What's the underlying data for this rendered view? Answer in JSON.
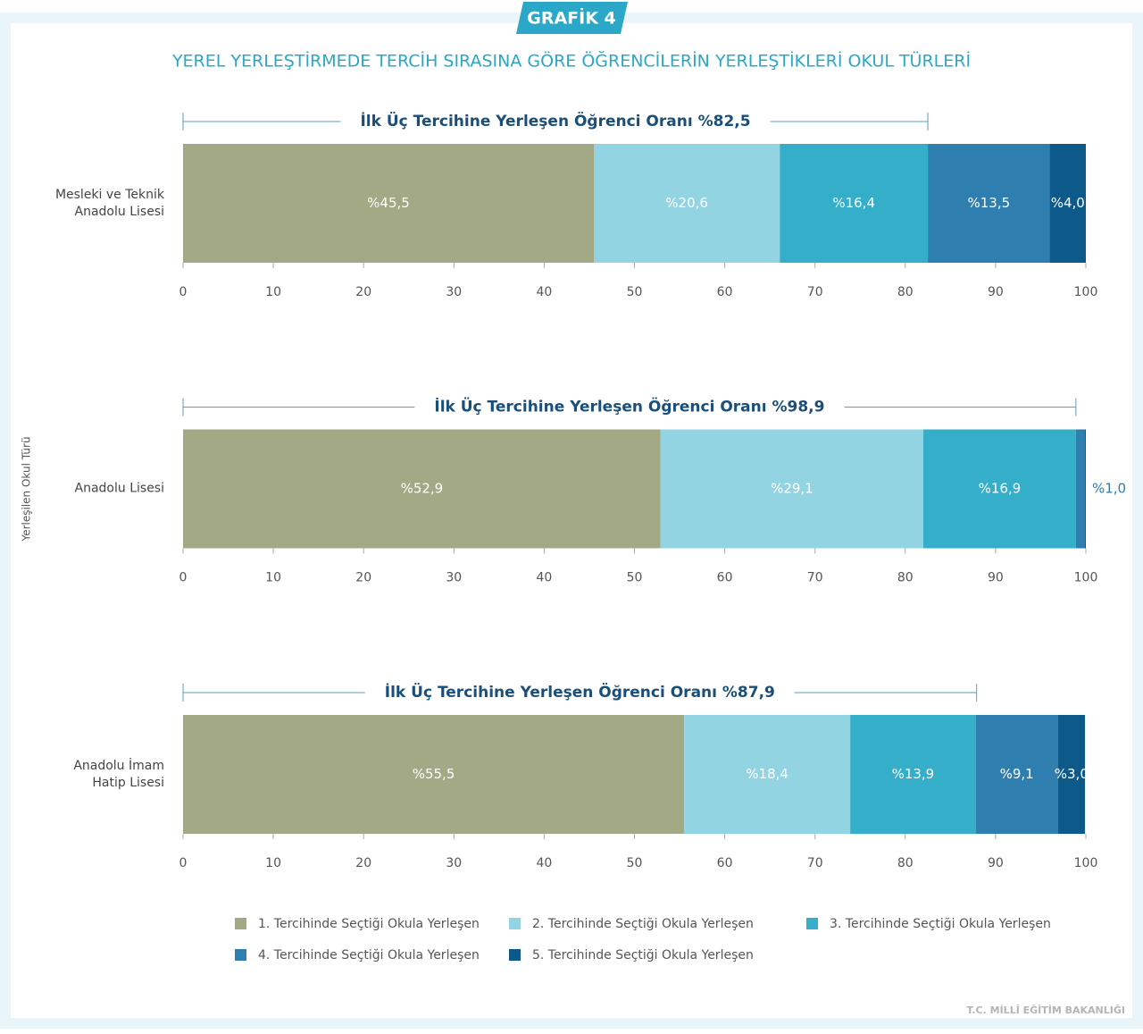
{
  "badge": "GRAFİK 4",
  "footer": "T.C. MİLLİ EĞİTİM BAKANLIĞI",
  "chart_data": {
    "type": "stacked-bar-horizontal",
    "title": "YEREL YERLEŞTİRMEDE TERCİH SIRASINA GÖRE ÖĞRENCİLERİN YERLEŞTİKLERİ OKUL TÜRLERİ",
    "y_label": "Yerleşilen Okul Türü",
    "categories": [
      "Mesleki ve Teknik Anadolu Lisesi",
      "Anadolu Lisesi",
      "Anadolu İmam Hatip Lisesi"
    ],
    "series": [
      {
        "name": "1. Tercihinde Seçtiği Okula Yerleşen",
        "color": "#a3a985",
        "values": [
          45.5,
          52.9,
          55.5
        ],
        "value_labels": [
          "%45,5",
          "%52,9",
          "%55,5"
        ]
      },
      {
        "name": "2. Tercihinde Seçtiği Okula Yerleşen",
        "color": "#93d4e3",
        "values": [
          20.6,
          29.1,
          18.4
        ],
        "value_labels": [
          "%20,6",
          "%29,1",
          "%18,4"
        ]
      },
      {
        "name": "3. Tercihinde Seçtiği Okula Yerleşen",
        "color": "#35aec9",
        "values": [
          16.4,
          16.9,
          13.9
        ],
        "value_labels": [
          "%16,4",
          "%16,9",
          "%13,9"
        ]
      },
      {
        "name": "4. Tercihinde Seçtiği Okula Yerleşen",
        "color": "#2e7fb0",
        "values": [
          13.5,
          1.0,
          9.1
        ],
        "value_labels": [
          "%13,5",
          "%1,0",
          "%9,1"
        ]
      },
      {
        "name": "5. Tercihinde Seçtiği Okula Yerleşen",
        "color": "#0d5a8a",
        "values": [
          4.0,
          0.1,
          3.0
        ],
        "value_labels": [
          "%4,0",
          null,
          "%3,0"
        ]
      }
    ],
    "annotations": [
      {
        "text": "İlk Üç Tercihine Yerleşen Öğrenci Oranı %82,5",
        "value": 82.5
      },
      {
        "text": "İlk Üç Tercihine Yerleşen Öğrenci Oranı %98,9",
        "value": 98.9
      },
      {
        "text": "İlk Üç Tercihine Yerleşen Öğrenci Oranı %87,9",
        "value": 87.9
      }
    ],
    "xlim": [
      0,
      100
    ],
    "xticks": [
      0,
      10,
      20,
      30,
      40,
      50,
      60,
      70,
      80,
      90,
      100
    ]
  }
}
